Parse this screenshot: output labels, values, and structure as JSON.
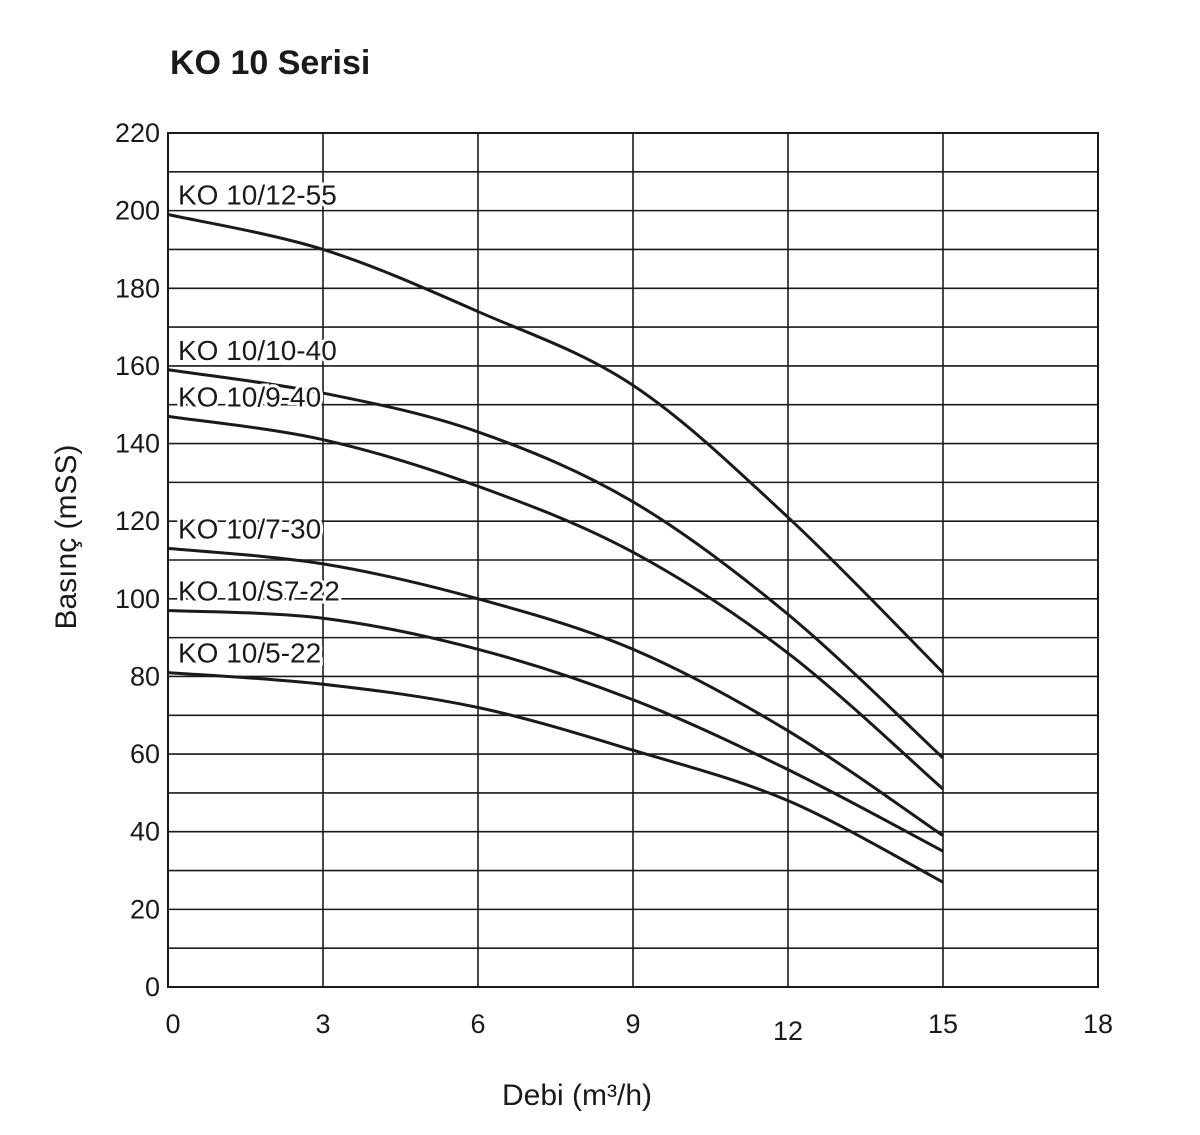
{
  "chart_data": {
    "type": "line",
    "title": "KO 10 Serisi",
    "xlabel": "Debi (m³/h)",
    "ylabel": "Basınç (mSS)",
    "xlim": [
      0,
      18
    ],
    "ylim": [
      0,
      220
    ],
    "xticks": [
      "0",
      "3",
      "6",
      "9",
      "12",
      "15",
      "18"
    ],
    "yticks": [
      "0",
      "20",
      "40",
      "60",
      "80",
      "100",
      "120",
      "140",
      "160",
      "180",
      "200",
      "220"
    ],
    "grid": true,
    "series": [
      {
        "name": "KO 10/12-55",
        "x": [
          0,
          3,
          6,
          9,
          12,
          15
        ],
        "y": [
          199,
          190,
          174,
          155,
          121,
          81
        ]
      },
      {
        "name": "KO 10/10-40",
        "x": [
          0,
          3,
          6,
          9,
          12,
          15
        ],
        "y": [
          159,
          153,
          143,
          125,
          96,
          59
        ]
      },
      {
        "name": "KO 10/9-40",
        "x": [
          0,
          3,
          6,
          9,
          12,
          15
        ],
        "y": [
          147,
          141,
          129,
          112,
          86,
          51
        ]
      },
      {
        "name": "KO 10/7-30",
        "x": [
          0,
          3,
          6,
          9,
          12,
          15
        ],
        "y": [
          113,
          109,
          100,
          87,
          66,
          39
        ]
      },
      {
        "name": "KO 10/S7-22",
        "x": [
          0,
          3,
          6,
          9,
          12,
          15
        ],
        "y": [
          97,
          95,
          87,
          74,
          56,
          35
        ]
      },
      {
        "name": "KO 10/5-22",
        "x": [
          0,
          3,
          6,
          9,
          12,
          15
        ],
        "y": [
          81,
          78,
          72,
          61,
          48,
          27
        ]
      }
    ]
  }
}
